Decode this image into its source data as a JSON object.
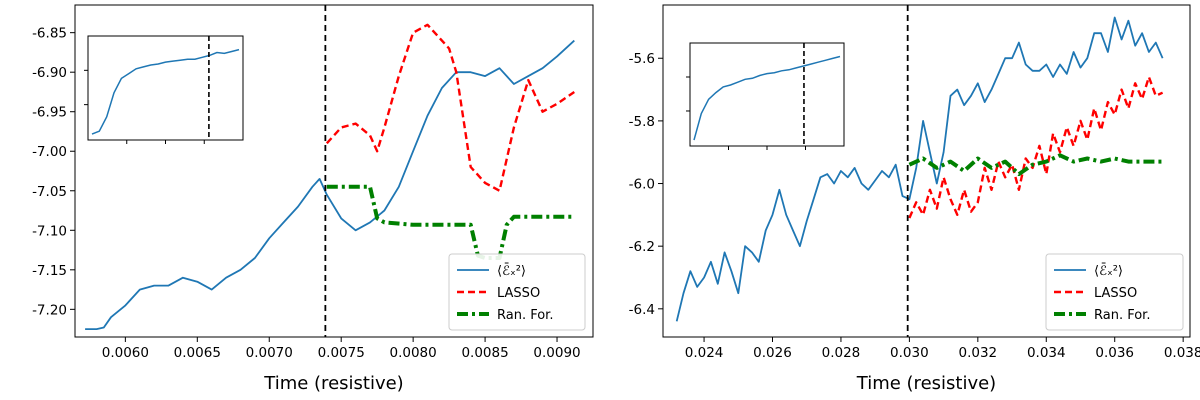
{
  "chart_data": [
    {
      "type": "line",
      "xlabel": "Time (resistive)",
      "ylabel": "",
      "xlim": [
        0.00565,
        0.00925
      ],
      "ylim": [
        -7.235,
        -6.815
      ],
      "xticks": [
        0.006,
        0.0065,
        0.007,
        0.0075,
        0.008,
        0.0085,
        0.009
      ],
      "xtick_labels": [
        "0.0060",
        "0.0065",
        "0.0070",
        "0.0075",
        "0.0080",
        "0.0085",
        "0.0090"
      ],
      "yticks": [
        -7.2,
        -7.15,
        -7.1,
        -7.05,
        -7.0,
        -6.95,
        -6.9,
        -6.85
      ],
      "ytick_labels": [
        "-7.20",
        "-7.15",
        "-7.10",
        "-7.05",
        "-7.00",
        "-6.95",
        "-6.90",
        "-6.85"
      ],
      "vline": 0.00739,
      "legend_position": "lower right",
      "series": [
        {
          "name": "⟨ℰ̄ₓ²⟩",
          "style": "solid",
          "color": "#1f77b4",
          "x": [
            0.00572,
            0.0058,
            0.00585,
            0.0059,
            0.006,
            0.0061,
            0.0062,
            0.0063,
            0.0064,
            0.0065,
            0.0066,
            0.0067,
            0.0068,
            0.0069,
            0.007,
            0.0071,
            0.0072,
            0.0073,
            0.00735,
            0.0074,
            0.0075,
            0.0076,
            0.0077,
            0.0078,
            0.0079,
            0.008,
            0.0081,
            0.0082,
            0.0083,
            0.0084,
            0.0085,
            0.0086,
            0.0087,
            0.0088,
            0.0089,
            0.009,
            0.00912
          ],
          "y": [
            -7.225,
            -7.225,
            -7.223,
            -7.21,
            -7.195,
            -7.175,
            -7.17,
            -7.17,
            -7.16,
            -7.165,
            -7.175,
            -7.16,
            -7.15,
            -7.135,
            -7.11,
            -7.09,
            -7.07,
            -7.045,
            -7.035,
            -7.055,
            -7.085,
            -7.1,
            -7.09,
            -7.075,
            -7.045,
            -7.0,
            -6.955,
            -6.92,
            -6.9,
            -6.9,
            -6.905,
            -6.895,
            -6.915,
            -6.905,
            -6.895,
            -6.88,
            -6.86
          ]
        },
        {
          "name": "LASSO",
          "style": "dashed",
          "color": "#ff0000",
          "x": [
            0.0074,
            0.0075,
            0.0076,
            0.0077,
            0.00775,
            0.0078,
            0.0079,
            0.008,
            0.0081,
            0.0082,
            0.00825,
            0.0083,
            0.0084,
            0.0085,
            0.0086,
            0.0087,
            0.0088,
            0.0089,
            0.009,
            0.00912
          ],
          "y": [
            -6.99,
            -6.97,
            -6.965,
            -6.98,
            -7.0,
            -6.97,
            -6.905,
            -6.85,
            -6.84,
            -6.86,
            -6.87,
            -6.9,
            -7.02,
            -7.04,
            -7.05,
            -6.97,
            -6.91,
            -6.95,
            -6.94,
            -6.925
          ]
        },
        {
          "name": "Ran. For.",
          "style": "dashdot",
          "color": "#008000",
          "x": [
            0.0074,
            0.0076,
            0.0077,
            0.00775,
            0.0078,
            0.008,
            0.0082,
            0.0084,
            0.00845,
            0.0085,
            0.0086,
            0.00865,
            0.0087,
            0.0089,
            0.00912
          ],
          "y": [
            -7.045,
            -7.045,
            -7.045,
            -7.085,
            -7.09,
            -7.093,
            -7.093,
            -7.093,
            -7.132,
            -7.135,
            -7.135,
            -7.093,
            -7.083,
            -7.083,
            -7.083
          ]
        }
      ],
      "inset": {
        "x": [
          0,
          0.05,
          0.1,
          0.15,
          0.2,
          0.25,
          0.3,
          0.35,
          0.4,
          0.45,
          0.5,
          0.55,
          0.6,
          0.65,
          0.7,
          0.75,
          0.8,
          0.85,
          0.9,
          0.95,
          1.0
        ],
        "y": [
          0.02,
          0.05,
          0.2,
          0.45,
          0.6,
          0.65,
          0.7,
          0.72,
          0.74,
          0.75,
          0.77,
          0.78,
          0.79,
          0.8,
          0.8,
          0.82,
          0.84,
          0.87,
          0.86,
          0.88,
          0.9
        ],
        "vline": 0.78
      }
    },
    {
      "type": "line",
      "xlabel": "Time (resistive)",
      "ylabel": "",
      "xlim": [
        0.0228,
        0.0382
      ],
      "ylim": [
        -6.49,
        -5.43
      ],
      "xticks": [
        0.024,
        0.026,
        0.028,
        0.03,
        0.032,
        0.034,
        0.036,
        0.038
      ],
      "xtick_labels": [
        "0.024",
        "0.026",
        "0.028",
        "0.030",
        "0.032",
        "0.034",
        "0.036",
        "0.038"
      ],
      "yticks": [
        -6.4,
        -6.2,
        -6.0,
        -5.8,
        -5.6
      ],
      "ytick_labels": [
        "-6.4",
        "-6.2",
        "-6.0",
        "-5.8",
        "-5.6"
      ],
      "vline": 0.02995,
      "legend_position": "lower right",
      "series": [
        {
          "name": "⟨ℰ̄ₓ²⟩",
          "style": "solid",
          "color": "#1f77b4",
          "x": [
            0.0232,
            0.0234,
            0.0236,
            0.0238,
            0.024,
            0.0242,
            0.0244,
            0.0246,
            0.0248,
            0.025,
            0.0252,
            0.0254,
            0.0256,
            0.0258,
            0.026,
            0.0262,
            0.0264,
            0.0266,
            0.0268,
            0.027,
            0.0272,
            0.0274,
            0.0276,
            0.0278,
            0.028,
            0.0282,
            0.0284,
            0.0286,
            0.0288,
            0.029,
            0.0292,
            0.0294,
            0.0296,
            0.0298,
            0.03,
            0.0302,
            0.0304,
            0.0306,
            0.0308,
            0.031,
            0.0312,
            0.0314,
            0.0316,
            0.0318,
            0.032,
            0.0322,
            0.0324,
            0.0326,
            0.0328,
            0.033,
            0.0332,
            0.0334,
            0.0336,
            0.0338,
            0.034,
            0.0342,
            0.0344,
            0.0346,
            0.0348,
            0.035,
            0.0352,
            0.0354,
            0.0356,
            0.0358,
            0.036,
            0.0362,
            0.0364,
            0.0366,
            0.0368,
            0.037,
            0.0372,
            0.0374
          ],
          "y": [
            -6.44,
            -6.35,
            -6.28,
            -6.33,
            -6.3,
            -6.25,
            -6.32,
            -6.22,
            -6.28,
            -6.35,
            -6.2,
            -6.22,
            -6.25,
            -6.15,
            -6.1,
            -6.02,
            -6.1,
            -6.15,
            -6.2,
            -6.12,
            -6.05,
            -5.98,
            -5.97,
            -6.0,
            -5.96,
            -5.98,
            -5.95,
            -6.0,
            -6.02,
            -5.99,
            -5.96,
            -5.98,
            -5.94,
            -6.04,
            -6.05,
            -5.95,
            -5.8,
            -5.9,
            -6.0,
            -5.9,
            -5.72,
            -5.7,
            -5.75,
            -5.72,
            -5.68,
            -5.74,
            -5.7,
            -5.65,
            -5.6,
            -5.6,
            -5.55,
            -5.62,
            -5.64,
            -5.64,
            -5.62,
            -5.66,
            -5.62,
            -5.65,
            -5.58,
            -5.63,
            -5.6,
            -5.52,
            -5.52,
            -5.58,
            -5.47,
            -5.54,
            -5.48,
            -5.56,
            -5.52,
            -5.58,
            -5.55,
            -5.6
          ]
        },
        {
          "name": "LASSO",
          "style": "dashed",
          "color": "#ff0000",
          "x": [
            0.03,
            0.0302,
            0.0304,
            0.0306,
            0.0308,
            0.031,
            0.0312,
            0.0314,
            0.0316,
            0.0318,
            0.032,
            0.0322,
            0.0324,
            0.0326,
            0.0328,
            0.033,
            0.0332,
            0.0334,
            0.0336,
            0.0338,
            0.034,
            0.0342,
            0.0344,
            0.0346,
            0.0348,
            0.035,
            0.0352,
            0.0354,
            0.0356,
            0.0358,
            0.036,
            0.0362,
            0.0364,
            0.0366,
            0.0368,
            0.037,
            0.0372,
            0.0374
          ],
          "y": [
            -6.11,
            -6.06,
            -6.1,
            -6.02,
            -6.08,
            -5.98,
            -6.05,
            -6.1,
            -6.02,
            -6.09,
            -6.06,
            -5.95,
            -6.02,
            -5.93,
            -5.98,
            -5.94,
            -6.02,
            -5.92,
            -5.95,
            -5.88,
            -5.97,
            -5.84,
            -5.9,
            -5.82,
            -5.88,
            -5.8,
            -5.86,
            -5.76,
            -5.83,
            -5.74,
            -5.78,
            -5.7,
            -5.76,
            -5.68,
            -5.73,
            -5.66,
            -5.72,
            -5.71
          ]
        },
        {
          "name": "Ran. For.",
          "style": "dashdot",
          "color": "#008000",
          "x": [
            0.03,
            0.0304,
            0.0308,
            0.0312,
            0.0316,
            0.032,
            0.0324,
            0.0328,
            0.0332,
            0.0336,
            0.034,
            0.0344,
            0.0348,
            0.0352,
            0.0356,
            0.036,
            0.0364,
            0.0368,
            0.0374
          ],
          "y": [
            -5.94,
            -5.92,
            -5.95,
            -5.93,
            -5.96,
            -5.92,
            -5.95,
            -5.93,
            -5.97,
            -5.94,
            -5.93,
            -5.91,
            -5.93,
            -5.92,
            -5.93,
            -5.92,
            -5.93,
            -5.93,
            -5.93
          ]
        }
      ],
      "inset": {
        "x": [
          0,
          0.05,
          0.1,
          0.15,
          0.2,
          0.25,
          0.3,
          0.35,
          0.4,
          0.45,
          0.5,
          0.55,
          0.6,
          0.65,
          0.7,
          0.75,
          0.8,
          0.85,
          0.9,
          0.95,
          1.0
        ],
        "y": [
          0.02,
          0.3,
          0.45,
          0.52,
          0.58,
          0.6,
          0.63,
          0.66,
          0.67,
          0.7,
          0.72,
          0.73,
          0.75,
          0.76,
          0.78,
          0.8,
          0.82,
          0.84,
          0.86,
          0.88,
          0.9
        ],
        "vline": 0.74
      }
    }
  ]
}
